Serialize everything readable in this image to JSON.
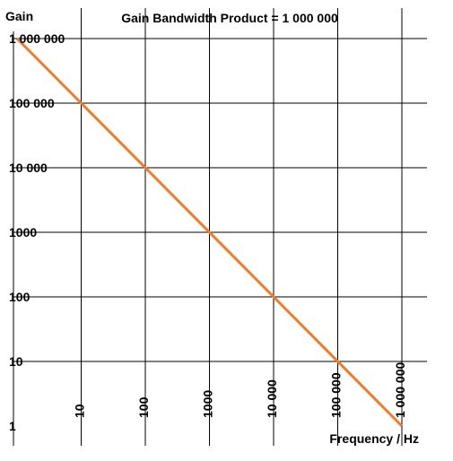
{
  "chart_data": {
    "type": "line",
    "title": "Gain Bandwidth Product = 1 000 000",
    "xlabel": "Frequency / Hz",
    "ylabel": "Gain",
    "x_scale": "log",
    "y_scale": "log",
    "xlim": [
      1,
      1000000
    ],
    "ylim": [
      1,
      1000000
    ],
    "grid": true,
    "x_ticks": [
      "10",
      "100",
      "1000",
      "10 000",
      "100 000",
      "1 000 000"
    ],
    "y_ticks": [
      "1",
      "10",
      "100",
      "1000",
      "10 000",
      "100 000",
      "1 000 000"
    ],
    "series": [
      {
        "x": [
          1,
          10,
          100,
          1000,
          10000,
          100000,
          1000000
        ],
        "y": [
          1000000,
          100000,
          10000,
          1000,
          100,
          10,
          1
        ]
      }
    ],
    "colors": {
      "line": "#F47A26",
      "grid": "#000000"
    }
  }
}
